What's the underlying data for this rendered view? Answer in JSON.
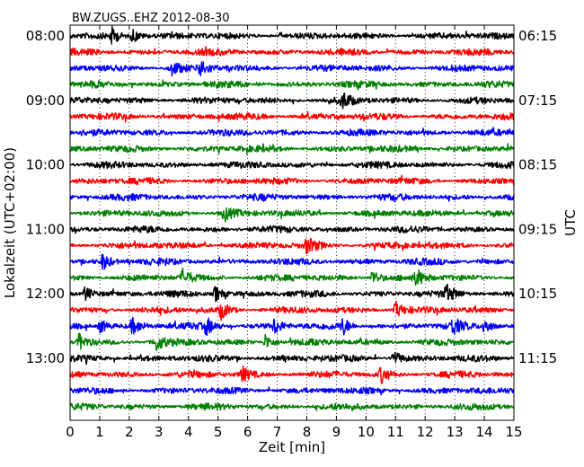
{
  "chart_data": {
    "type": "line",
    "title": "BW.ZUGS..EHZ 2012-08-30",
    "xlabel": "Zeit  [min]",
    "ylabel_left": "Lokalzeit (UTC+02:00)",
    "ylabel_right": "UTC",
    "xlim": [
      0,
      15
    ],
    "x_ticks": [
      "0",
      "1",
      "2",
      "3",
      "4",
      "5",
      "6",
      "7",
      "8",
      "9",
      "10",
      "11",
      "12",
      "13",
      "14",
      "15"
    ],
    "grid": "vertical-dotted",
    "trace_colors": [
      "#000000",
      "#ff0000",
      "#0000ff",
      "#008000"
    ],
    "trace_count": 24,
    "trace_minutes": 15,
    "left_time_labels": [
      "08:00",
      "09:00",
      "10:00",
      "11:00",
      "12:00",
      "13:00"
    ],
    "right_time_labels": [
      "06:15",
      "07:15",
      "08:15",
      "09:15",
      "10:15",
      "11:15"
    ],
    "bursts": [
      {
        "trace": 0,
        "at": [
          1.4,
          2.1
        ]
      },
      {
        "trace": 2,
        "at": [
          3.4,
          4.4
        ]
      },
      {
        "trace": 4,
        "at": [
          9.2
        ]
      },
      {
        "trace": 11,
        "at": [
          5.2
        ]
      },
      {
        "trace": 13,
        "at": [
          8.0
        ]
      },
      {
        "trace": 14,
        "at": [
          1.1
        ]
      },
      {
        "trace": 15,
        "at": [
          3.8,
          10.2,
          11.7
        ]
      },
      {
        "trace": 16,
        "at": [
          0.5,
          4.9,
          12.7
        ]
      },
      {
        "trace": 17,
        "at": [
          5.1,
          11.0
        ]
      },
      {
        "trace": 18,
        "at": [
          1.0,
          2.1,
          4.6,
          6.9,
          9.2,
          12.9,
          14.0
        ]
      },
      {
        "trace": 19,
        "at": [
          0.3,
          2.9,
          6.6
        ]
      },
      {
        "trace": 20,
        "at": [
          10.9
        ]
      },
      {
        "trace": 21,
        "at": [
          5.8,
          10.5
        ]
      }
    ]
  }
}
